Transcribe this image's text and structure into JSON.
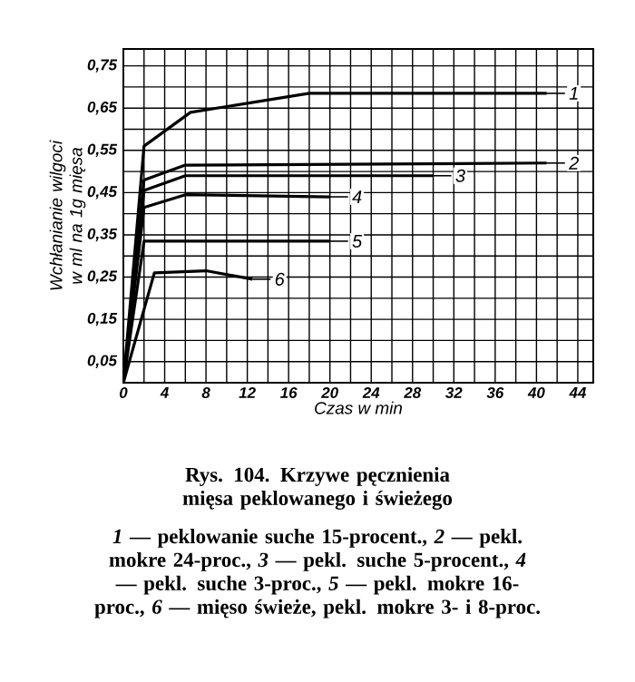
{
  "chart_data": {
    "type": "line",
    "title": "Rys. 104. Krzywe pęcznienia mięsa peklowanego i świeżego",
    "annotations": [
      "*1* — peklowanie suche 15-procent., *2* — pekl. mokre 24-proc., *3* — pekl. suche 5-procent., *4* — pekl. suche 3-proc., *5* — pekl. mokre 16-proc., *6* — mięso świeże, pekl. mokre 3- i 8-proc."
    ],
    "xlabel": "Czas w min",
    "ylabel": "Wchłanianie wilgoci w ml na 1g mięsa",
    "xlim": [
      0,
      45.5
    ],
    "ylim": [
      0,
      0.79
    ],
    "xticks": [
      0,
      {
        "value": 2,
        "label": null
      },
      4,
      {
        "value": 6,
        "label": null
      },
      8,
      {
        "value": 10,
        "label": null
      },
      12,
      {
        "value": 14,
        "label": null
      },
      16,
      {
        "value": 18,
        "label": null
      },
      20,
      {
        "value": 22,
        "label": null
      },
      24,
      {
        "value": 26,
        "label": null
      },
      28,
      {
        "value": 30,
        "label": null
      },
      32,
      {
        "value": 34,
        "label": null
      },
      36,
      {
        "value": 38,
        "label": null
      },
      40,
      {
        "value": 42,
        "label": null
      },
      44
    ],
    "yticks": [
      {
        "value": 0.05,
        "label": "0,05"
      },
      {
        "value": 0.1,
        "label": null
      },
      {
        "value": 0.15,
        "label": "0,15"
      },
      {
        "value": 0.2,
        "label": null
      },
      {
        "value": 0.25,
        "label": "0,25"
      },
      {
        "value": 0.3,
        "label": null
      },
      {
        "value": 0.35,
        "label": "0,35"
      },
      {
        "value": 0.4,
        "label": null
      },
      {
        "value": 0.45,
        "label": "0,45"
      },
      {
        "value": 0.5,
        "label": null
      },
      {
        "value": 0.55,
        "label": "0,55"
      },
      {
        "value": 0.6,
        "label": null
      },
      {
        "value": 0.65,
        "label": "0,65"
      },
      {
        "value": 0.7,
        "label": null
      },
      {
        "value": 0.75,
        "label": "0,75"
      }
    ],
    "grid": true,
    "legend": "right",
    "marker": "none",
    "line_style": "solid",
    "series": [
      {
        "name": "1",
        "color": "#000000",
        "x": [
          0,
          2,
          6.5,
          18,
          41
        ],
        "values": [
          0,
          0.56,
          0.64,
          0.685,
          0.685
        ]
      },
      {
        "name": "2",
        "color": "#000000",
        "x": [
          0,
          2,
          6,
          41
        ],
        "values": [
          0,
          0.48,
          0.515,
          0.52
        ]
      },
      {
        "name": "3",
        "color": "#000000",
        "x": [
          0,
          2,
          6,
          30
        ],
        "values": [
          0,
          0.455,
          0.49,
          0.49
        ]
      },
      {
        "name": "4",
        "color": "#000000",
        "x": [
          0,
          2,
          6,
          20
        ],
        "values": [
          0,
          0.415,
          0.445,
          0.44
        ]
      },
      {
        "name": "5",
        "color": "#000000",
        "x": [
          0,
          2,
          20
        ],
        "values": [
          0,
          0.335,
          0.335
        ]
      },
      {
        "name": "6",
        "color": "#000000",
        "x": [
          0,
          3,
          8,
          12.5
        ],
        "values": [
          0,
          0.26,
          0.265,
          0.245
        ]
      }
    ]
  }
}
